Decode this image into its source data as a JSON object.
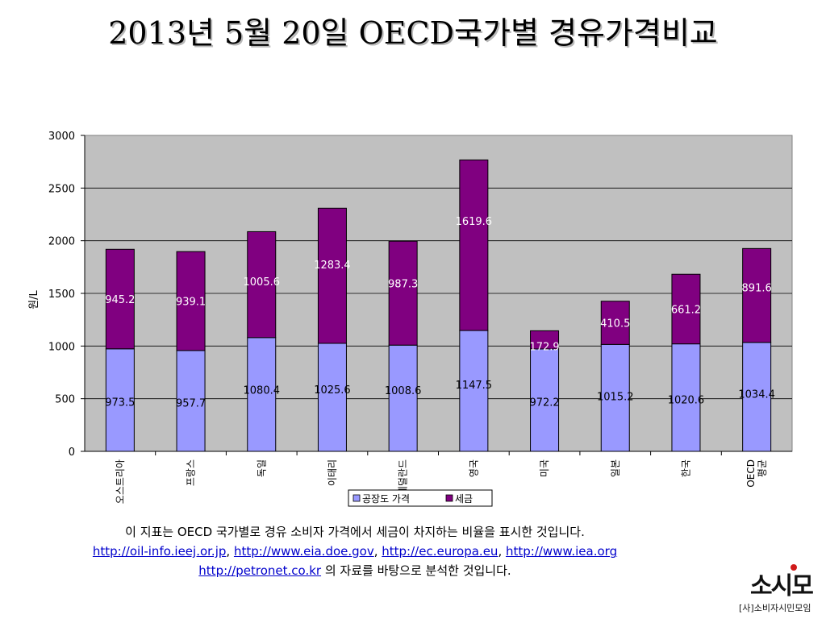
{
  "slide": {
    "title": "2013년 5월 20일 OECD국가별 경유가격비교"
  },
  "chart_data": {
    "type": "bar",
    "stacked": true,
    "categories": [
      "오스트리아",
      "프랑스",
      "독일",
      "이태리",
      "네덜란드",
      "영국",
      "미국",
      "일본",
      "한국",
      "OECD 평균"
    ],
    "series": [
      {
        "name": "공장도 가격",
        "values": [
          973.5,
          957.7,
          1080.4,
          1025.6,
          1008.6,
          1147.5,
          972.2,
          1015.2,
          1020.6,
          1034.4
        ],
        "color": "#9999ff"
      },
      {
        "name": "세금",
        "values": [
          945.2,
          939.1,
          1005.6,
          1283.4,
          987.3,
          1619.6,
          172.9,
          410.5,
          661.2,
          891.6
        ],
        "color": "#800080"
      }
    ],
    "ylabel": "원/L",
    "xlabel": "",
    "ylim": [
      0,
      3000
    ],
    "yticks": [
      0,
      500,
      1000,
      1500,
      2000,
      2500,
      3000
    ],
    "grid": true,
    "plot_background": "#c0c0c0",
    "legend_position": "bottom"
  },
  "footer": {
    "line1": "이 지표는 OECD 국가별로 경유 소비자 가격에서 세금이 차지하는 비율을 표시한 것입니다.",
    "link1": "http://oil-info.ieej.or.jp",
    "link2": "http://www.eia.doe.gov",
    "link3": "http://ec.europa.eu",
    "link4": "http://www.iea.org",
    "sep": ", ",
    "link5": "http://petronet.co.kr",
    "line3_suffix": " 의 자료를 바탕으로 분석한 것입니다."
  },
  "logo": {
    "main": "소시모",
    "sub": "[사]소비자시민모임"
  }
}
